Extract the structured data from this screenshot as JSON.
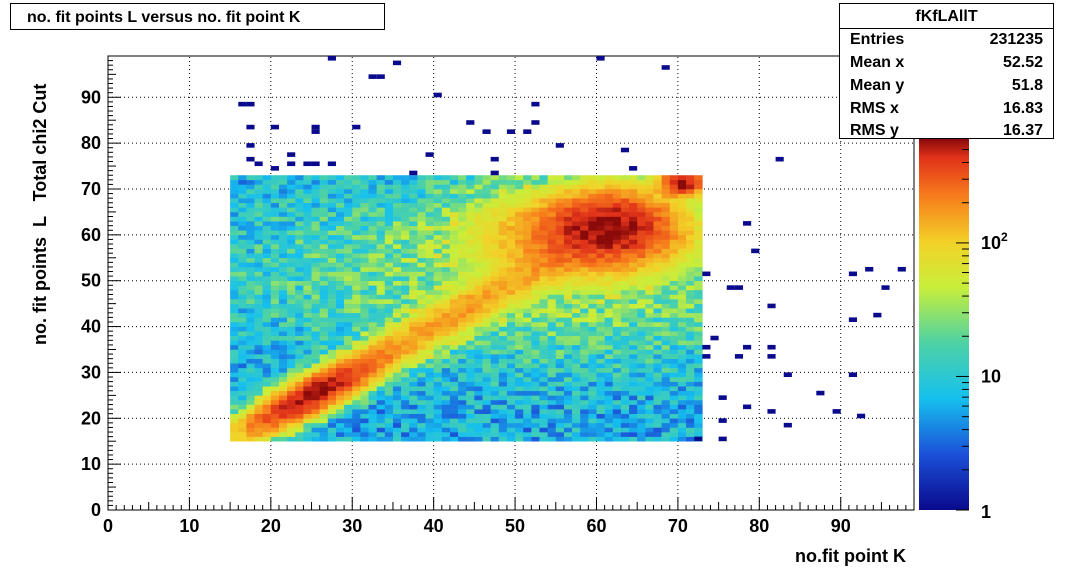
{
  "title": "no. fit points L versus no. fit point K",
  "stats": {
    "name": "fKfLAllT",
    "rows": [
      {
        "label": "Entries",
        "value": "231235"
      },
      {
        "label": "Mean x",
        "value": "52.52"
      },
      {
        "label": "Mean y",
        "value": "51.8"
      },
      {
        "label": "RMS x",
        "value": "16.83"
      },
      {
        "label": "RMS y",
        "value": "16.37"
      }
    ]
  },
  "chart_data": {
    "type": "heatmap",
    "title": "no. fit points L versus no. fit point K",
    "xlabel": "no.fit point K",
    "ylabel": "no. fit points  L   Total chi2 Cut",
    "xlim": [
      0,
      99
    ],
    "ylim": [
      0,
      99
    ],
    "x_ticks": [
      0,
      10,
      20,
      30,
      40,
      50,
      60,
      70,
      80,
      90
    ],
    "y_ticks": [
      0,
      10,
      20,
      30,
      40,
      50,
      60,
      70,
      80,
      90
    ],
    "grid": true,
    "bin_width": 1,
    "dense_region": {
      "x": [
        15,
        72
      ],
      "y": [
        15,
        72
      ]
    },
    "hotspots": [
      {
        "x": 26,
        "y": 26,
        "level": "max"
      },
      {
        "x": 62,
        "y": 62,
        "level": "max"
      },
      {
        "x": 70,
        "y": 71,
        "level": "max"
      }
    ],
    "sparse_bins": [
      [
        27,
        98
      ],
      [
        35,
        97
      ],
      [
        60,
        98
      ],
      [
        68,
        96
      ],
      [
        32,
        94
      ],
      [
        33,
        94
      ],
      [
        40,
        90
      ],
      [
        16,
        88
      ],
      [
        17,
        88
      ],
      [
        52,
        88
      ],
      [
        44,
        84
      ],
      [
        52,
        84
      ],
      [
        17,
        83
      ],
      [
        20,
        83
      ],
      [
        25,
        83
      ],
      [
        25,
        82
      ],
      [
        30,
        83
      ],
      [
        46,
        82
      ],
      [
        49,
        82
      ],
      [
        51,
        82
      ],
      [
        55,
        79
      ],
      [
        17,
        79
      ],
      [
        63,
        78
      ],
      [
        39,
        77
      ],
      [
        22,
        77
      ],
      [
        47,
        76
      ],
      [
        82,
        76
      ],
      [
        17,
        76
      ],
      [
        18,
        75
      ],
      [
        24,
        75
      ],
      [
        25,
        75
      ],
      [
        27,
        75
      ],
      [
        22,
        75
      ],
      [
        20,
        74
      ],
      [
        64,
        74
      ],
      [
        37,
        73
      ],
      [
        47,
        73
      ],
      [
        78,
        62
      ],
      [
        79,
        56
      ],
      [
        73,
        51
      ],
      [
        91,
        51
      ],
      [
        93,
        52
      ],
      [
        97,
        52
      ],
      [
        76,
        48
      ],
      [
        77,
        48
      ],
      [
        95,
        48
      ],
      [
        81,
        44
      ],
      [
        91,
        41
      ],
      [
        94,
        42
      ],
      [
        74,
        37
      ],
      [
        73,
        35
      ],
      [
        78,
        35
      ],
      [
        81,
        35
      ],
      [
        73,
        33
      ],
      [
        77,
        33
      ],
      [
        81,
        33
      ],
      [
        83,
        29
      ],
      [
        91,
        29
      ],
      [
        75,
        24
      ],
      [
        87,
        25
      ],
      [
        78,
        22
      ],
      [
        81,
        21
      ],
      [
        89,
        21
      ],
      [
        92,
        20
      ],
      [
        75,
        19
      ],
      [
        83,
        18
      ],
      [
        72,
        15
      ],
      [
        75,
        15
      ]
    ],
    "color_scale": {
      "type": "log",
      "min": 1,
      "max": 600,
      "ticks": [
        "1",
        "10",
        "10^2"
      ]
    },
    "stats": {
      "entries": 231235,
      "mean_x": 52.52,
      "mean_y": 51.8,
      "rms_x": 16.83,
      "rms_y": 16.37
    }
  }
}
